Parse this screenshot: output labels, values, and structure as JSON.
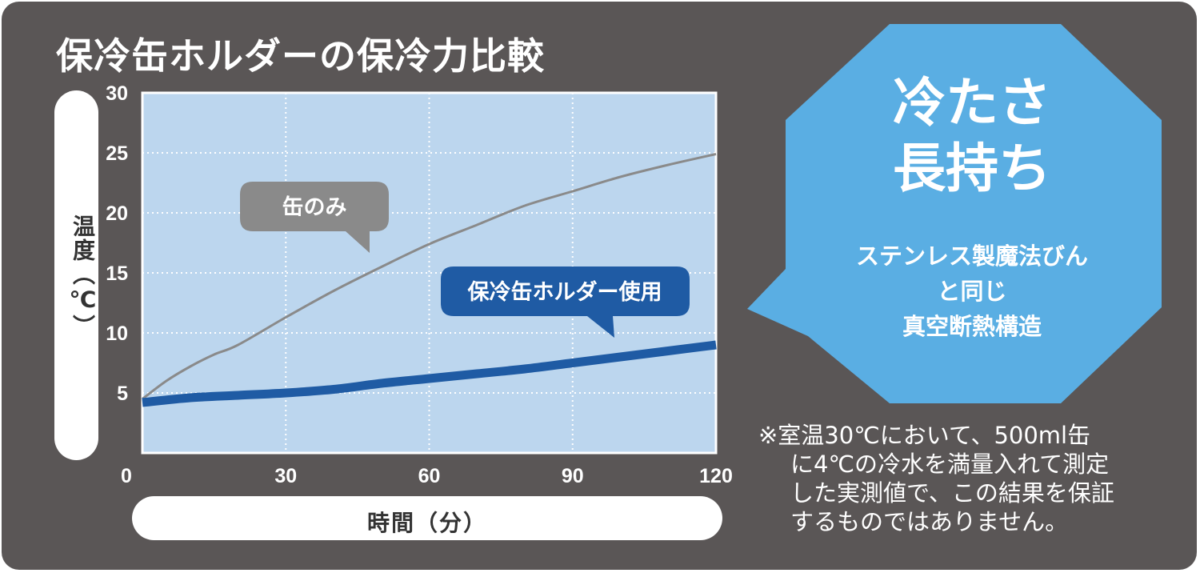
{
  "title": "保冷缶ホルダーの保冷力比較",
  "chart_data": {
    "type": "line",
    "ylabel": "温度（℃）",
    "xlabel": "時間（分）",
    "xlim": [
      0,
      120
    ],
    "ylim": [
      0,
      30
    ],
    "x_ticks": [
      0,
      30,
      60,
      90,
      120
    ],
    "y_ticks": [
      5,
      10,
      15,
      20,
      25,
      30
    ],
    "grid": true,
    "series": [
      {
        "name": "缶のみ",
        "color": "#8a8a8a",
        "x": [
          0,
          5,
          10,
          15,
          20,
          30,
          40,
          50,
          60,
          70,
          80,
          90,
          100,
          110,
          120
        ],
        "values": [
          4.5,
          6.0,
          7.2,
          8.2,
          9.0,
          11.3,
          13.5,
          15.5,
          17.4,
          19.0,
          20.6,
          21.8,
          23.0,
          24.0,
          24.9
        ]
      },
      {
        "name": "保冷缶ホルダー使用",
        "color": "#1f5ba4",
        "x": [
          0,
          10,
          20,
          30,
          40,
          50,
          60,
          70,
          80,
          90,
          100,
          110,
          120
        ],
        "values": [
          4.2,
          4.6,
          4.8,
          5.0,
          5.3,
          5.8,
          6.2,
          6.6,
          7.0,
          7.5,
          8.0,
          8.5,
          9.0
        ]
      }
    ]
  },
  "badge": {
    "title_line1": "冷たさ",
    "title_line2": "長持ち",
    "sub_line1": "ステンレス製魔法びん",
    "sub_line2": "と同じ",
    "sub_line3": "真空断熱構造",
    "color": "#5aaee3"
  },
  "note": {
    "line1": "※室温30℃において、500ml缶",
    "line2": "に4℃の冷水を満量入れて測定",
    "line3": "した実測値で、この結果を保証",
    "line4": "するものではありません。"
  },
  "colors": {
    "background": "#5a5656",
    "plot_area": "#bcd6ee",
    "gray_series": "#8a8a8a",
    "blue_series": "#1f5ba4",
    "badge": "#5aaee3"
  }
}
